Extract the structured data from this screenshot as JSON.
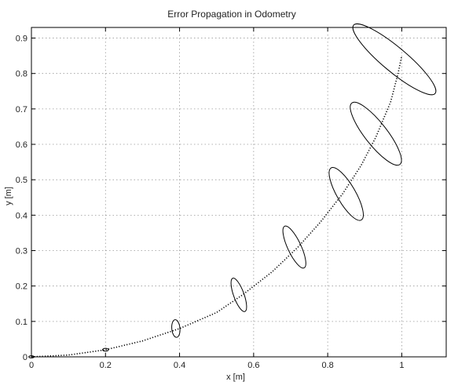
{
  "chart_data": {
    "type": "line",
    "title": "Error Propagation in Odometry",
    "xlabel": "x [m]",
    "ylabel": "y [m]",
    "xlim": [
      0,
      1.12
    ],
    "ylim": [
      0,
      0.93
    ],
    "grid": true,
    "x_ticks": [
      0,
      0.2,
      0.4,
      0.6,
      0.8,
      1
    ],
    "x_tick_labels": [
      "0",
      "0.2",
      "0.4",
      "0.6",
      "0.8",
      "1"
    ],
    "y_ticks": [
      0,
      0.1,
      0.2,
      0.3,
      0.4,
      0.5,
      0.6,
      0.7,
      0.8,
      0.9
    ],
    "y_tick_labels": [
      "0",
      "0.1",
      "0.2",
      "0.3",
      "0.4",
      "0.5",
      "0.6",
      "0.7",
      "0.8",
      "0.9"
    ],
    "series": [
      {
        "style": "dotted",
        "color": "#000000",
        "points": [
          [
            0,
            0
          ],
          [
            0.1,
            0.005
          ],
          [
            0.2,
            0.02
          ],
          [
            0.3,
            0.045
          ],
          [
            0.4,
            0.08
          ],
          [
            0.5,
            0.125
          ],
          [
            0.57,
            0.175
          ],
          [
            0.65,
            0.24
          ],
          [
            0.72,
            0.31
          ],
          [
            0.78,
            0.38
          ],
          [
            0.84,
            0.46
          ],
          [
            0.89,
            0.54
          ],
          [
            0.93,
            0.62
          ],
          [
            0.97,
            0.72
          ],
          [
            0.99,
            0.8
          ],
          [
            1.0,
            0.85
          ]
        ]
      }
    ],
    "ellipses": [
      {
        "center": [
          0.0,
          0.0
        ],
        "rx": 0.007,
        "ry": 0.003,
        "angle_deg": 0
      },
      {
        "center": [
          0.2,
          0.02
        ],
        "rx": 0.008,
        "ry": 0.004,
        "angle_deg": 0
      },
      {
        "center": [
          0.39,
          0.08
        ],
        "rx": 0.011,
        "ry": 0.025,
        "angle_deg": -5
      },
      {
        "center": [
          0.56,
          0.175
        ],
        "rx": 0.014,
        "ry": 0.05,
        "angle_deg": -20
      },
      {
        "center": [
          0.71,
          0.31
        ],
        "rx": 0.018,
        "ry": 0.065,
        "angle_deg": -25
      },
      {
        "center": [
          0.85,
          0.46
        ],
        "rx": 0.025,
        "ry": 0.085,
        "angle_deg": -30
      },
      {
        "center": [
          0.93,
          0.63
        ],
        "rx": 0.03,
        "ry": 0.11,
        "angle_deg": -38
      },
      {
        "center": [
          0.98,
          0.84
        ],
        "rx": 0.033,
        "ry": 0.15,
        "angle_deg": -50
      }
    ]
  }
}
